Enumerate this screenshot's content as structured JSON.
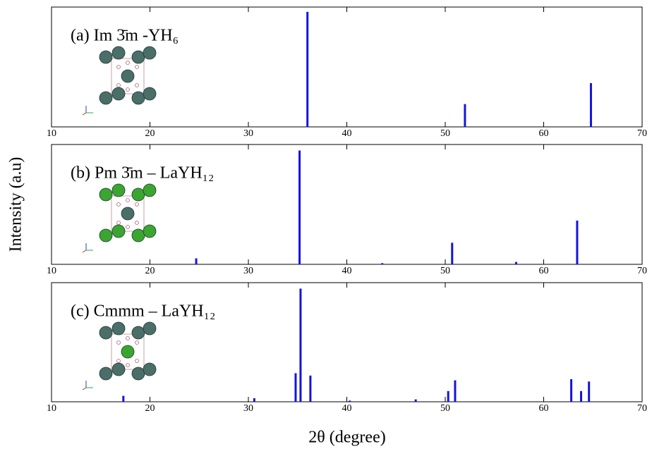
{
  "axis_labels": {
    "y": "Intensity (a.u)",
    "x": "2θ (degree)"
  },
  "chart_data": [
    {
      "type": "stem",
      "annotation": "(a) Im 3̄m -YH₆",
      "color": "#1414e0",
      "x": [
        36.0,
        52.0,
        64.8
      ],
      "values": [
        96,
        19,
        36.5
      ],
      "xlim": [
        10,
        70
      ],
      "xticks": [
        10,
        20,
        30,
        40,
        50,
        60,
        70
      ],
      "ylim": [
        0,
        100
      ]
    },
    {
      "type": "stem",
      "annotation": "(b) Pm 3̄m – LaYH₁₂",
      "color": "#1414e0",
      "x": [
        24.7,
        35.2,
        43.6,
        50.7,
        57.2,
        63.4
      ],
      "values": [
        5,
        95,
        1,
        18,
        2,
        36.5
      ],
      "xlim": [
        10,
        70
      ],
      "xticks": [
        10,
        20,
        30,
        40,
        50,
        60,
        70
      ],
      "ylim": [
        0,
        100
      ]
    },
    {
      "type": "stem",
      "annotation": "(c) Cmmm – LaYH₁₂",
      "color": "#1414e0",
      "x": [
        17.3,
        30.6,
        34.8,
        35.3,
        36.3,
        40.3,
        47.0,
        50.3,
        51.0,
        62.8,
        63.8,
        64.6
      ],
      "values": [
        5,
        3,
        24,
        95,
        22,
        1,
        2,
        9,
        18,
        19,
        9,
        17
      ],
      "xlim": [
        10,
        70
      ],
      "xticks": [
        10,
        20,
        30,
        40,
        50,
        60,
        70
      ],
      "ylim": [
        0,
        100
      ]
    }
  ]
}
